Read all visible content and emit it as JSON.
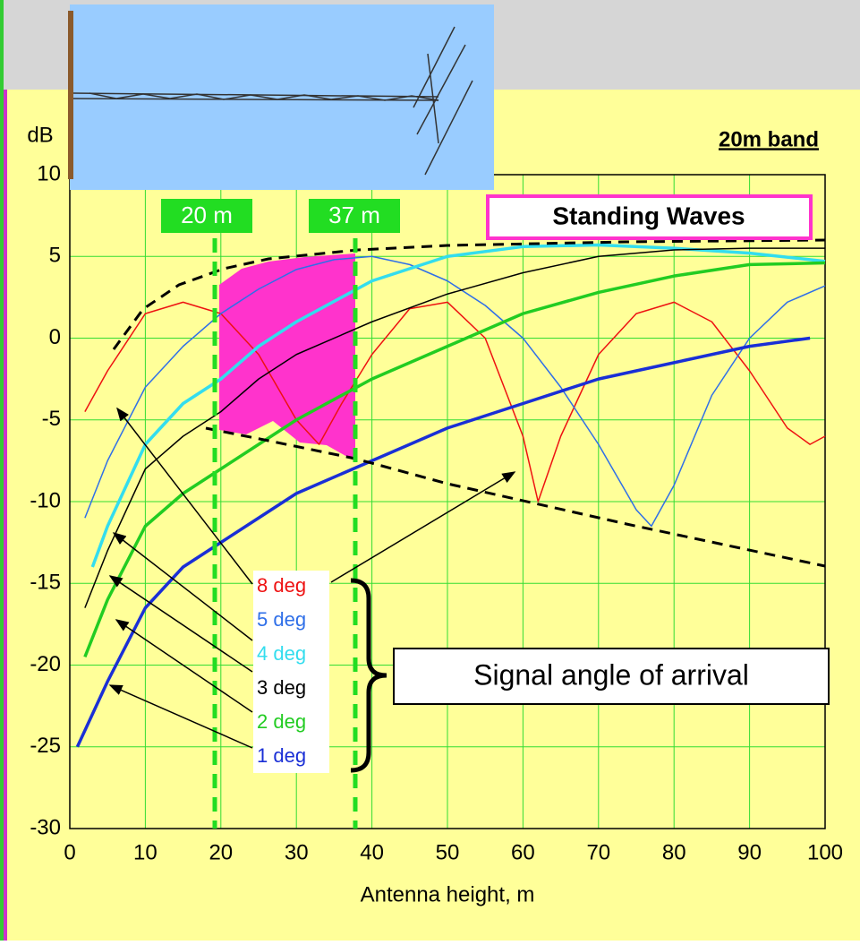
{
  "chart_data": {
    "type": "line",
    "y_unit_label": "dB",
    "band_label": "20m band",
    "title_box": "Standing Waves",
    "x_axis_label": "Antenna height, m",
    "brace_label": "Signal angle of arrival",
    "markers": [
      "20 m",
      "37 m"
    ],
    "xlim": [
      0,
      100
    ],
    "ylim": [
      -30,
      10
    ],
    "xticks": [
      0,
      10,
      20,
      30,
      40,
      50,
      60,
      70,
      80,
      90,
      100
    ],
    "yticks": [
      10,
      5,
      0,
      -5,
      -10,
      -15,
      -20,
      -25,
      -30
    ],
    "grid": true,
    "series": [
      {
        "name": "8 deg",
        "color": "#ee1111",
        "linewidth": 1.5,
        "x": [
          2,
          5,
          10,
          15,
          20,
          25,
          30,
          33,
          36,
          40,
          45,
          50,
          55,
          60,
          62,
          65,
          70,
          75,
          80,
          85,
          90,
          95,
          98,
          100
        ],
        "values": [
          -4.5,
          -2,
          1.5,
          2.2,
          1.5,
          -1,
          -5,
          -6.5,
          -4,
          -1,
          1.8,
          2.2,
          0,
          -6,
          -10,
          -6,
          -1,
          1.5,
          2.2,
          1,
          -2,
          -5.5,
          -6.5,
          -6
        ]
      },
      {
        "name": "5 deg",
        "color": "#2f6fe8",
        "linewidth": 1.5,
        "x": [
          2,
          5,
          10,
          15,
          20,
          25,
          30,
          35,
          40,
          45,
          50,
          55,
          60,
          65,
          70,
          75,
          77,
          80,
          85,
          90,
          95,
          100
        ],
        "values": [
          -11,
          -7.5,
          -3,
          -0.5,
          1.5,
          3,
          4.2,
          4.8,
          5,
          4.5,
          3.5,
          2,
          0,
          -3,
          -6.5,
          -10.5,
          -11.5,
          -9,
          -3.5,
          0,
          2.2,
          3.2
        ]
      },
      {
        "name": "4 deg",
        "color": "#33ddee",
        "linewidth": 3.5,
        "x": [
          3,
          5,
          10,
          15,
          20,
          25,
          30,
          40,
          50,
          60,
          70,
          80,
          90,
          100
        ],
        "values": [
          -14,
          -11.5,
          -6.5,
          -4,
          -2.5,
          -0.5,
          1,
          3.5,
          5,
          5.6,
          5.7,
          5.5,
          5.2,
          4.7
        ]
      },
      {
        "name": "3 deg",
        "color": "#000000",
        "linewidth": 1.5,
        "x": [
          2,
          5,
          10,
          15,
          20,
          25,
          30,
          40,
          50,
          60,
          70,
          80,
          90,
          100
        ],
        "values": [
          -16.5,
          -13,
          -8,
          -6,
          -4.5,
          -2.5,
          -1,
          1,
          2.7,
          4,
          5,
          5.4,
          5.5,
          5.5
        ]
      },
      {
        "name": "2 deg",
        "color": "#22cc22",
        "linewidth": 3.5,
        "x": [
          2,
          5,
          10,
          15,
          20,
          25,
          30,
          40,
          50,
          60,
          70,
          80,
          90,
          100
        ],
        "values": [
          -19.5,
          -16,
          -11.5,
          -9.5,
          -8,
          -6.5,
          -5,
          -2.5,
          -0.5,
          1.5,
          2.8,
          3.8,
          4.5,
          4.6
        ]
      },
      {
        "name": "1 deg",
        "color": "#1a2fd6",
        "linewidth": 3.5,
        "x": [
          1,
          5,
          10,
          15,
          20,
          25,
          30,
          40,
          50,
          60,
          70,
          80,
          90,
          98
        ],
        "values": [
          -25,
          -21,
          -16.5,
          -14,
          -12.5,
          -11,
          -9.5,
          -7.5,
          -5.5,
          -4,
          -2.5,
          -1.5,
          -0.5,
          0
        ]
      }
    ]
  }
}
